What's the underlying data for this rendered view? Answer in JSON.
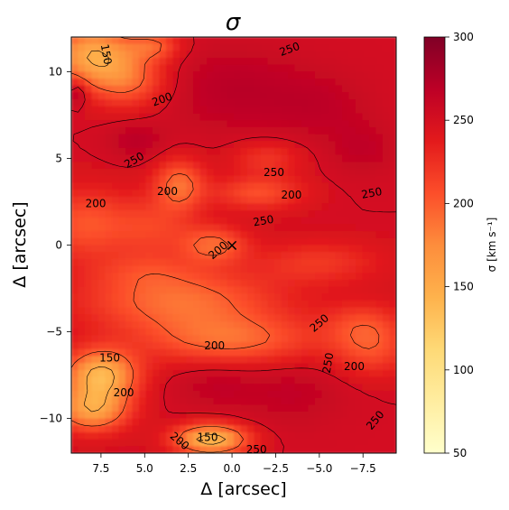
{
  "chart_data": {
    "type": "heatmap",
    "title": "σ",
    "xlabel": "Δ [arcsec]",
    "ylabel": "Δ [arcsec]",
    "xlim": [
      9.2,
      -9.4
    ],
    "ylim": [
      -12,
      12
    ],
    "x_ticks": [
      7.5,
      5.0,
      2.5,
      0.0,
      -2.5,
      -5.0,
      -7.5
    ],
    "x_tick_labels": [
      "7.5",
      "5.0",
      "2.5",
      "0.0",
      "−2.5",
      "−5.0",
      "−7.5"
    ],
    "y_ticks": [
      10,
      5,
      0,
      -5,
      -10
    ],
    "y_tick_labels": [
      "10",
      "5",
      "0",
      "−5",
      "−10"
    ],
    "colormap": "YlOrRd",
    "colorbar": {
      "label": "σ [km s⁻¹]",
      "range": [
        50,
        300
      ],
      "ticks": [
        50,
        100,
        150,
        200,
        250,
        300
      ],
      "tick_labels": [
        "50",
        "100",
        "150",
        "200",
        "250",
        "300"
      ],
      "colors": [
        "#ffffcc",
        "#ffeda0",
        "#fed976",
        "#feb24c",
        "#fd8d3c",
        "#fc4e2a",
        "#e31a1c",
        "#bd0026",
        "#800026"
      ]
    },
    "contour_levels": [
      150,
      200,
      250
    ],
    "contour_labels": [
      {
        "text": "150",
        "x": 7.2,
        "y": 11.0,
        "angle": 80
      },
      {
        "text": "250",
        "x": -3.3,
        "y": 11.3,
        "angle": -20
      },
      {
        "text": "200",
        "x": 4.0,
        "y": 8.4,
        "angle": -20
      },
      {
        "text": "250",
        "x": 5.6,
        "y": 4.9,
        "angle": -30
      },
      {
        "text": "200",
        "x": 3.7,
        "y": 3.1,
        "angle": 0
      },
      {
        "text": "250",
        "x": -2.4,
        "y": 4.2,
        "angle": 0
      },
      {
        "text": "200",
        "x": -3.4,
        "y": 2.9,
        "angle": 0
      },
      {
        "text": "250",
        "x": -8.0,
        "y": 3.0,
        "angle": -10
      },
      {
        "text": "200",
        "x": 7.8,
        "y": 2.4,
        "angle": 0
      },
      {
        "text": "250",
        "x": -1.8,
        "y": 1.4,
        "angle": -10
      },
      {
        "text": "200",
        "x": 0.8,
        "y": -0.3,
        "angle": -40
      },
      {
        "text": "250",
        "x": -5.0,
        "y": -4.5,
        "angle": -40
      },
      {
        "text": "200",
        "x": 1.0,
        "y": -5.8,
        "angle": 0
      },
      {
        "text": "150",
        "x": 7.0,
        "y": -6.5,
        "angle": 0
      },
      {
        "text": "250",
        "x": -5.5,
        "y": -6.8,
        "angle": -80
      },
      {
        "text": "200",
        "x": -7.0,
        "y": -7.0,
        "angle": 0
      },
      {
        "text": "200",
        "x": 6.2,
        "y": -8.5,
        "angle": 0
      },
      {
        "text": "250",
        "x": -8.2,
        "y": -10.1,
        "angle": -50
      },
      {
        "text": "200",
        "x": 3.0,
        "y": -11.3,
        "angle": 40
      },
      {
        "text": "150",
        "x": 1.4,
        "y": -11.1,
        "angle": 0
      },
      {
        "text": "250",
        "x": -1.4,
        "y": -11.8,
        "angle": 0
      }
    ],
    "marker": {
      "symbol": "×",
      "x": 0.0,
      "y": 0.0
    }
  }
}
